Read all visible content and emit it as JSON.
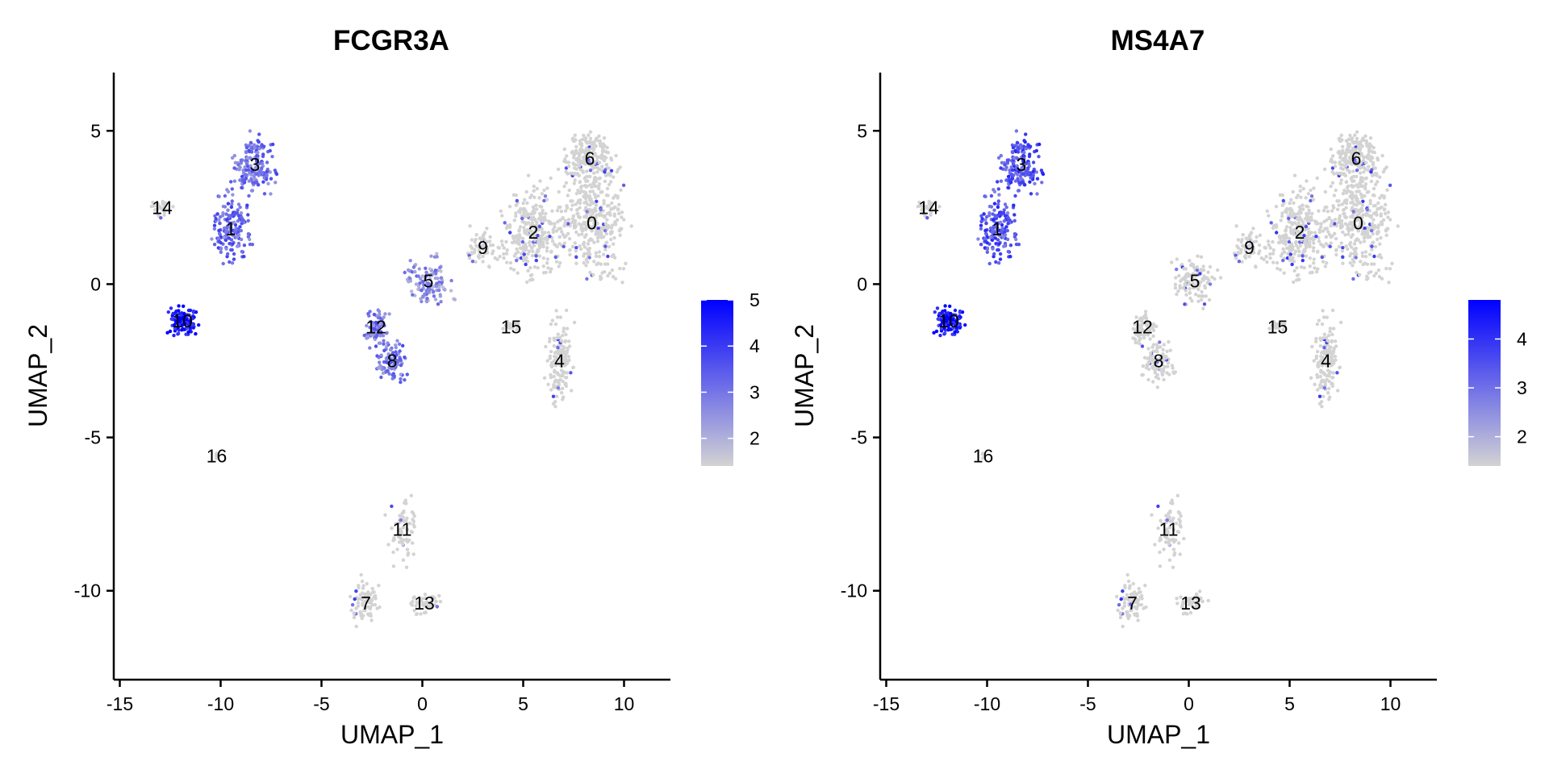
{
  "chart_data": [
    {
      "type": "scatter",
      "title": "FCGR3A",
      "xlabel": "UMAP_1",
      "ylabel": "UMAP_2",
      "xlim": [
        -15.3,
        12.3
      ],
      "ylim": [
        -12.9,
        6.9
      ],
      "xticks": [
        -15,
        -10,
        -5,
        0,
        5,
        10
      ],
      "yticks": [
        5,
        0,
        -5,
        -10
      ],
      "grid": false,
      "legend_position": "right",
      "colorbar": {
        "min": 1.4,
        "max": 5,
        "ticks": [
          5,
          4,
          3,
          2
        ],
        "low_color": "#d3d3d3",
        "high_color": "#0000ff"
      },
      "clusters": [
        {
          "label": "0",
          "x": 8.4,
          "y": 2.0,
          "expr": 1.5
        },
        {
          "label": "1",
          "x": -9.5,
          "y": 1.8,
          "expr": 3.2
        },
        {
          "label": "2",
          "x": 5.5,
          "y": 1.7,
          "expr": 1.5
        },
        {
          "label": "3",
          "x": -8.3,
          "y": 3.9,
          "expr": 3.1
        },
        {
          "label": "4",
          "x": 6.8,
          "y": -2.5,
          "expr": 1.5
        },
        {
          "label": "5",
          "x": 0.3,
          "y": 0.1,
          "expr": 2.5
        },
        {
          "label": "6",
          "x": 8.3,
          "y": 4.1,
          "expr": 1.4
        },
        {
          "label": "7",
          "x": -2.8,
          "y": -10.4,
          "expr": 1.4
        },
        {
          "label": "8",
          "x": -1.5,
          "y": -2.5,
          "expr": 3.0
        },
        {
          "label": "9",
          "x": 3.0,
          "y": 1.2,
          "expr": 1.7
        },
        {
          "label": "10",
          "x": -11.9,
          "y": -1.2,
          "expr": 4.6
        },
        {
          "label": "11",
          "x": -1.0,
          "y": -8.0,
          "expr": 1.4
        },
        {
          "label": "12",
          "x": -2.3,
          "y": -1.4,
          "expr": 3.0
        },
        {
          "label": "13",
          "x": 0.1,
          "y": -10.4,
          "expr": 1.4
        },
        {
          "label": "14",
          "x": -12.9,
          "y": 2.5,
          "expr": 1.4
        },
        {
          "label": "15",
          "x": 4.4,
          "y": -1.4,
          "expr": 1.4
        },
        {
          "label": "16",
          "x": -10.2,
          "y": -5.6,
          "expr": 1.4
        }
      ]
    },
    {
      "type": "scatter",
      "title": "MS4A7",
      "xlabel": "UMAP_1",
      "ylabel": "UMAP_2",
      "xlim": [
        -15.3,
        12.3
      ],
      "ylim": [
        -12.9,
        6.9
      ],
      "xticks": [
        -15,
        -10,
        -5,
        0,
        5,
        10
      ],
      "yticks": [
        5,
        0,
        -5,
        -10
      ],
      "grid": false,
      "legend_position": "right",
      "colorbar": {
        "min": 1.4,
        "max": 4.8,
        "ticks": [
          4,
          3,
          2
        ],
        "low_color": "#d3d3d3",
        "high_color": "#0000ff"
      },
      "clusters": [
        {
          "label": "0",
          "x": 8.4,
          "y": 2.0,
          "expr": 1.4
        },
        {
          "label": "1",
          "x": -9.5,
          "y": 1.8,
          "expr": 3.4
        },
        {
          "label": "2",
          "x": 5.5,
          "y": 1.7,
          "expr": 1.4
        },
        {
          "label": "3",
          "x": -8.3,
          "y": 3.9,
          "expr": 3.5
        },
        {
          "label": "4",
          "x": 6.8,
          "y": -2.5,
          "expr": 1.4
        },
        {
          "label": "5",
          "x": 0.3,
          "y": 0.1,
          "expr": 1.5
        },
        {
          "label": "6",
          "x": 8.3,
          "y": 4.1,
          "expr": 1.4
        },
        {
          "label": "7",
          "x": -2.8,
          "y": -10.4,
          "expr": 1.6
        },
        {
          "label": "8",
          "x": -1.5,
          "y": -2.5,
          "expr": 1.5
        },
        {
          "label": "9",
          "x": 3.0,
          "y": 1.2,
          "expr": 1.5
        },
        {
          "label": "10",
          "x": -11.9,
          "y": -1.2,
          "expr": 4.4
        },
        {
          "label": "11",
          "x": -1.0,
          "y": -8.0,
          "expr": 1.5
        },
        {
          "label": "12",
          "x": -2.3,
          "y": -1.4,
          "expr": 1.5
        },
        {
          "label": "13",
          "x": 0.1,
          "y": -10.4,
          "expr": 1.5
        },
        {
          "label": "14",
          "x": -12.9,
          "y": 2.5,
          "expr": 1.6
        },
        {
          "label": "15",
          "x": 4.4,
          "y": -1.4,
          "expr": 1.4
        },
        {
          "label": "16",
          "x": -10.2,
          "y": -5.6,
          "expr": 1.4
        }
      ]
    }
  ]
}
